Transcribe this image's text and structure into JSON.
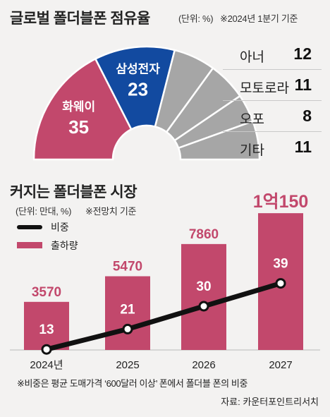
{
  "top": {
    "title": "글로벌 폴더블폰 점유율",
    "unit_note": "(단위: %)",
    "period_note": "※2024년 1분기 기준"
  },
  "bottom": {
    "title": "커지는 폴더블폰 시장",
    "unit_note": "(단위: 만대, %)",
    "forecast_note": "※전망치 기준"
  },
  "legend": {
    "ratio": "비중",
    "shipments": "출하량"
  },
  "footnote": "※비중은 평균 도매가격 ‘600달러 이상’ 폰에서 폴더블 폰의 비중",
  "source": "자료: 카운터포인트리서치",
  "colors": {
    "huawei": "#c2486c",
    "samsung": "#124aa0",
    "others": "#a6a6a6",
    "bar": "#c2486c",
    "line": "#111111"
  },
  "chart_data": [
    {
      "type": "pie",
      "title": "글로벌 폴더블폰 점유율",
      "slices": [
        {
          "label": "화웨이",
          "value": 35
        },
        {
          "label": "삼성전자",
          "value": 23
        },
        {
          "label": "아너",
          "value": 12
        },
        {
          "label": "모토로라",
          "value": 11
        },
        {
          "label": "오포",
          "value": 8
        },
        {
          "label": "기타",
          "value": 11
        }
      ]
    },
    {
      "type": "bar",
      "title": "커지는 폴더블폰 시장",
      "categories": [
        "2024년",
        "2025",
        "2026",
        "2027"
      ],
      "series": [
        {
          "name": "출하량",
          "values": [
            3570,
            5470,
            7860,
            10150
          ],
          "value_labels": [
            "3570",
            "5470",
            "7860",
            "1억150"
          ]
        },
        {
          "name": "비중",
          "values": [
            13,
            21,
            30,
            39
          ]
        }
      ]
    }
  ]
}
